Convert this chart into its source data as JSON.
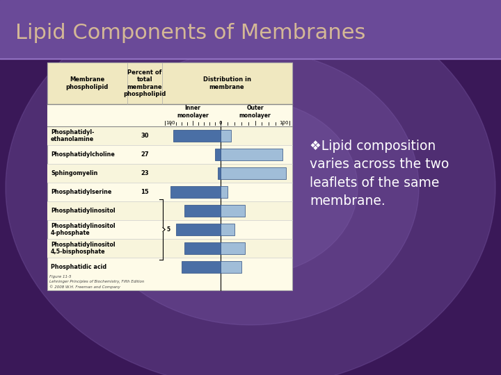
{
  "title": "Lipid Components of Membranes",
  "title_color": "#D4B896",
  "bg_color_center": "#7B5BAA",
  "bg_color_edge": "#3A1A5A",
  "title_bar_color": "#6B4A9A",
  "table_bg": "#FEFBE8",
  "table_header_bg": "#F0E8C0",
  "subtitle_text": "❖Lipid composition\nvaries across the two\nleaflets of the same\nmembrane.",
  "col_header1": "Membrane\nphospholipid",
  "col_header2": "Percent of\ntotal\nmembrane\nphospholipid",
  "col_header3": "Distribution in\nmembrane",
  "rows": [
    {
      "name": "Phosphatidyl-\nethanolamine",
      "percent": 30,
      "inner": 85,
      "outer": 15
    },
    {
      "name": "Phosphatidylcholine",
      "percent": 27,
      "inner": 10,
      "outer": 90
    },
    {
      "name": "Sphingomyelin",
      "percent": 23,
      "inner": 5,
      "outer": 95
    },
    {
      "name": "Phosphatidylserine",
      "percent": 15,
      "inner": 90,
      "outer": 10
    },
    {
      "name": "Phosphatidylinositol",
      "percent": null,
      "inner": 65,
      "outer": 35
    },
    {
      "name": "Phosphatidylinositol\n4-phosphate",
      "percent": null,
      "inner": 80,
      "outer": 20
    },
    {
      "name": "Phosphatidylinositol\n4,5-bisphosphate",
      "percent": null,
      "inner": 65,
      "outer": 35
    },
    {
      "name": "Phosphatidic acid",
      "percent": null,
      "inner": 70,
      "outer": 30
    }
  ],
  "brace_label": "5",
  "bar_inner_color": "#4A6FA5",
  "bar_outer_color": "#A0BDD8",
  "figure_caption": "Figure 11-5\nLehninger Principles of Biochemistry, Fifth Edition\n© 2008 W.H. Freeman and Company"
}
